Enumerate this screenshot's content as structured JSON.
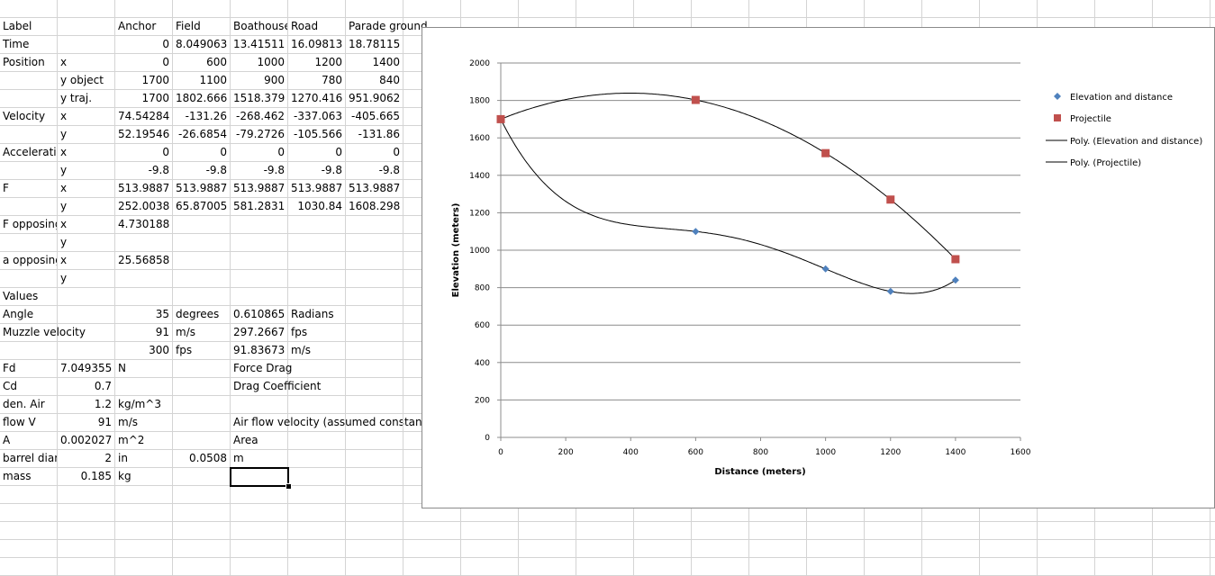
{
  "sheet": {
    "rows": [
      [],
      [
        "Label",
        "",
        "Anchor",
        "Field",
        "Boathouse",
        "Road",
        "Parade ground"
      ],
      [
        "Time",
        "",
        "0",
        "8.049063",
        "13.41511",
        "16.09813",
        "18.78115"
      ],
      [
        "Position",
        "x",
        "0",
        "600",
        "1000",
        "1200",
        "1400"
      ],
      [
        "",
        "y object",
        "1700",
        "1100",
        "900",
        "780",
        "840"
      ],
      [
        "",
        "y traj.",
        "1700",
        "1802.666",
        "1518.379",
        "1270.416",
        "951.9062"
      ],
      [
        "Velocity",
        "x",
        "74.54284",
        "-131.26",
        "-268.462",
        "-337.063",
        "-405.665"
      ],
      [
        "",
        "y",
        "52.19546",
        "-26.6854",
        "-79.2726",
        "-105.566",
        "-131.86"
      ],
      [
        "Acceleration",
        "x",
        "0",
        "0",
        "0",
        "0",
        "0"
      ],
      [
        "",
        "y",
        "-9.8",
        "-9.8",
        "-9.8",
        "-9.8",
        "-9.8"
      ],
      [
        "F",
        "x",
        "513.9887",
        "513.9887",
        "513.9887",
        "513.9887",
        "513.9887"
      ],
      [
        "",
        "y",
        "252.0038",
        "65.87005",
        "581.2831",
        "1030.84",
        "1608.298"
      ],
      [
        "F opposing",
        "x",
        "4.730188"
      ],
      [
        "",
        "y"
      ],
      [
        "a opposing",
        "x",
        "25.56858"
      ],
      [
        "",
        "y"
      ],
      [
        "Values"
      ],
      [
        "Angle",
        "",
        "35",
        "degrees",
        "0.610865",
        "Radians"
      ],
      [
        "Muzzle velocity",
        "",
        "91",
        "m/s",
        "297.2667",
        "fps"
      ],
      [
        "",
        "",
        "300",
        "fps",
        "91.83673",
        "m/s"
      ],
      [
        "Fd",
        "7.049355",
        "N",
        "",
        "Force Drag"
      ],
      [
        "Cd",
        "0.7",
        "",
        "",
        "Drag Coefficient"
      ],
      [
        "den. Air",
        "1.2",
        "kg/m^3"
      ],
      [
        "flow V",
        "91",
        "m/s",
        "",
        "Air flow velocity (assumed constant)"
      ],
      [
        "A",
        "0.002027",
        "m^2",
        "",
        "Area"
      ],
      [
        "barrel diameter",
        "2",
        "in",
        "0.0508",
        "m"
      ],
      [
        "mass",
        "0.185",
        "kg"
      ]
    ]
  },
  "chart_data": {
    "type": "scatter",
    "xlabel": "Distance (meters)",
    "ylabel": "Elevation (meters)",
    "xlim": [
      0,
      1600
    ],
    "ylim": [
      0,
      2000
    ],
    "xticks": [
      0,
      200,
      400,
      600,
      800,
      1000,
      1200,
      1400,
      1600
    ],
    "yticks": [
      0,
      200,
      400,
      600,
      800,
      1000,
      1200,
      1400,
      1600,
      1800,
      2000
    ],
    "grid": "horizontal",
    "legend_position": "right",
    "series": [
      {
        "name": "Elevation and distance",
        "marker": "diamond",
        "color": "#4f81bd",
        "x": [
          0,
          600,
          1000,
          1200,
          1400
        ],
        "y": [
          1700,
          1100,
          900,
          780,
          840
        ]
      },
      {
        "name": "Projectile",
        "marker": "square",
        "color": "#c0504d",
        "x": [
          0,
          600,
          1000,
          1200,
          1400
        ],
        "y": [
          1700,
          1802.666,
          1518.379,
          1270.416,
          951.9062
        ]
      }
    ],
    "trendlines": [
      {
        "name": "Poly. (Elevation and distance)",
        "series": 0,
        "type": "polynomial",
        "color": "#000000"
      },
      {
        "name": "Poly. (Projectile)",
        "series": 1,
        "type": "polynomial",
        "color": "#000000"
      }
    ]
  }
}
